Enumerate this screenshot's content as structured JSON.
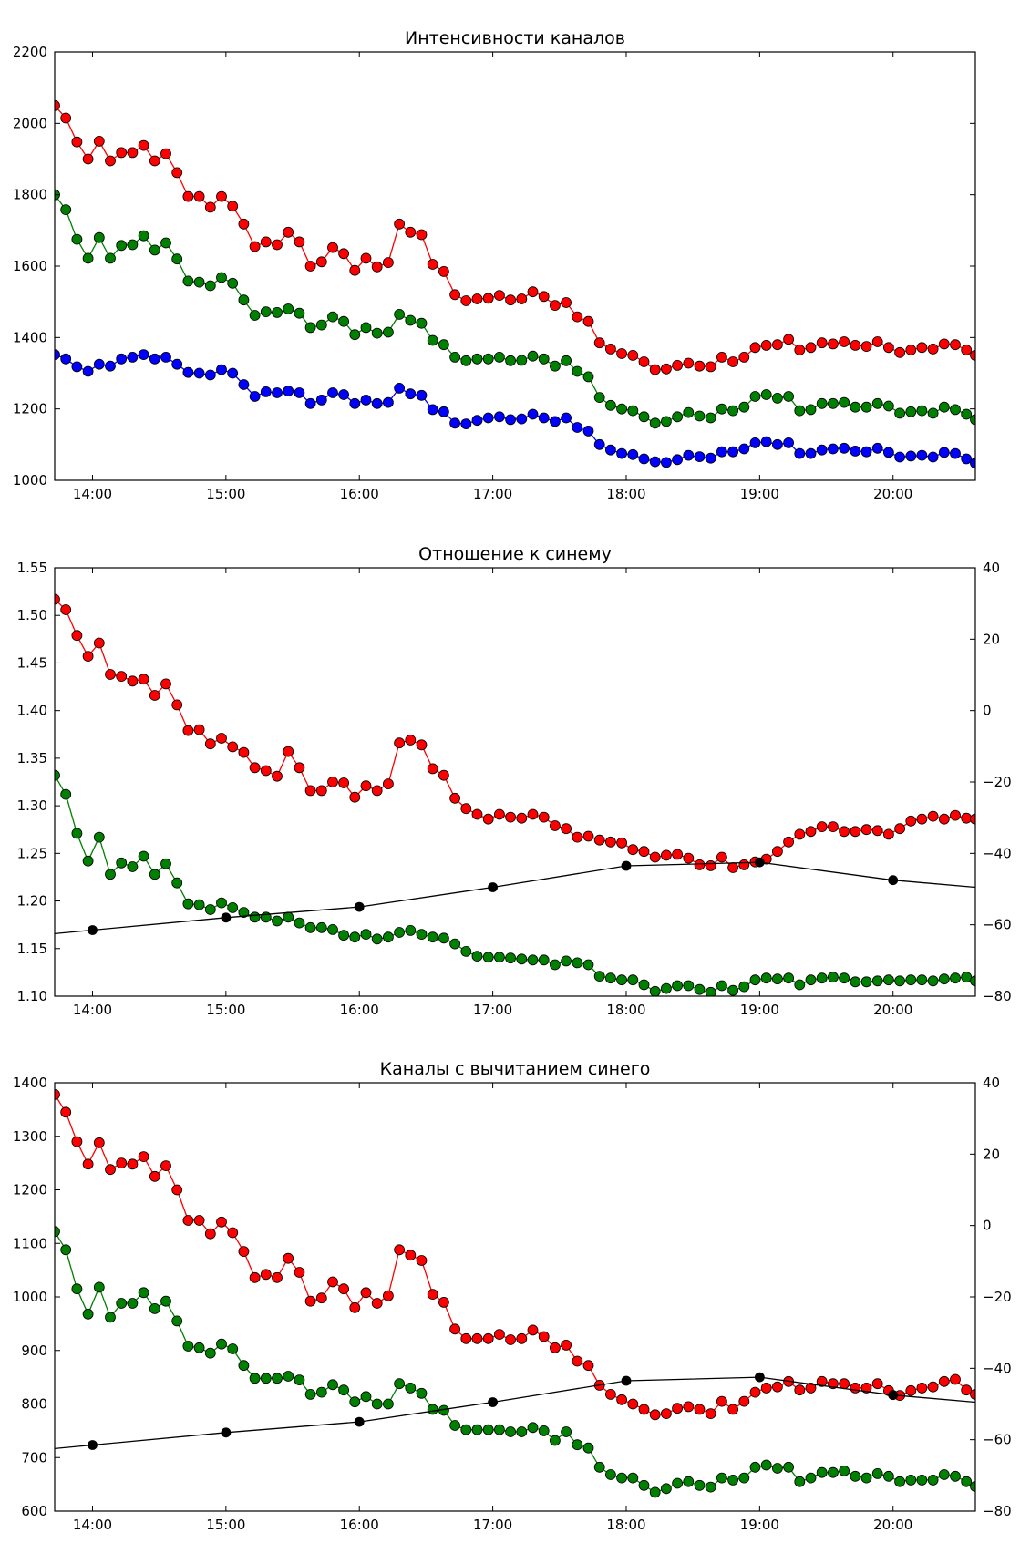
{
  "chart_data": [
    {
      "type": "line",
      "title": "Интенсивности каналов",
      "xlim": [
        "13:43",
        "20:37"
      ],
      "xticks": [
        "14:00",
        "15:00",
        "16:00",
        "17:00",
        "18:00",
        "19:00",
        "20:00"
      ],
      "ylim": [
        1000,
        2200
      ],
      "yticks": [
        "1000",
        "1200",
        "1400",
        "1600",
        "1800",
        "2000",
        "2200"
      ],
      "grid": false,
      "x": [
        "13:43",
        "13:48",
        "13:53",
        "13:58",
        "14:03",
        "14:08",
        "14:13",
        "14:18",
        "14:23",
        "14:28",
        "14:33",
        "14:38",
        "14:43",
        "14:48",
        "14:53",
        "14:58",
        "15:03",
        "15:08",
        "15:13",
        "15:18",
        "15:23",
        "15:28",
        "15:33",
        "15:38",
        "15:43",
        "15:48",
        "15:53",
        "15:58",
        "16:03",
        "16:08",
        "16:13",
        "16:18",
        "16:23",
        "16:28",
        "16:33",
        "16:38",
        "16:43",
        "16:48",
        "16:53",
        "16:58",
        "17:03",
        "17:08",
        "17:13",
        "17:18",
        "17:23",
        "17:28",
        "17:33",
        "17:38",
        "17:43",
        "17:48",
        "17:53",
        "17:58",
        "18:03",
        "18:08",
        "18:13",
        "18:18",
        "18:23",
        "18:28",
        "18:33",
        "18:38",
        "18:43",
        "18:48",
        "18:53",
        "18:58",
        "19:03",
        "19:08",
        "19:13",
        "19:18",
        "19:23",
        "19:28",
        "19:33",
        "19:38",
        "19:43",
        "19:48",
        "19:53",
        "19:58",
        "20:03",
        "20:08",
        "20:13",
        "20:18",
        "20:23",
        "20:28",
        "20:33",
        "20:37"
      ],
      "series": [
        {
          "color": "#ff0000",
          "values": [
            2050,
            2015,
            1948,
            1900,
            1950,
            1895,
            1918,
            1918,
            1938,
            1895,
            1915,
            1862,
            1795,
            1795,
            1765,
            1795,
            1768,
            1718,
            1655,
            1668,
            1660,
            1695,
            1668,
            1600,
            1612,
            1652,
            1635,
            1588,
            1622,
            1598,
            1610,
            1718,
            1695,
            1688,
            1605,
            1585,
            1520,
            1503,
            1508,
            1510,
            1518,
            1505,
            1508,
            1528,
            1515,
            1490,
            1498,
            1458,
            1445,
            1385,
            1368,
            1355,
            1350,
            1332,
            1310,
            1312,
            1322,
            1328,
            1320,
            1318,
            1345,
            1332,
            1345,
            1372,
            1378,
            1380,
            1395,
            1365,
            1372,
            1385,
            1382,
            1388,
            1378,
            1375,
            1388,
            1372,
            1358,
            1365,
            1372,
            1368,
            1382,
            1380,
            1365,
            1350
          ]
        },
        {
          "color": "#008000",
          "values": [
            1800,
            1758,
            1675,
            1622,
            1680,
            1622,
            1658,
            1660,
            1685,
            1645,
            1665,
            1620,
            1558,
            1555,
            1545,
            1568,
            1552,
            1505,
            1462,
            1472,
            1470,
            1480,
            1468,
            1428,
            1435,
            1458,
            1445,
            1408,
            1428,
            1412,
            1415,
            1465,
            1448,
            1440,
            1392,
            1380,
            1345,
            1335,
            1340,
            1340,
            1345,
            1335,
            1336,
            1348,
            1340,
            1320,
            1335,
            1305,
            1290,
            1232,
            1210,
            1200,
            1195,
            1178,
            1160,
            1165,
            1178,
            1190,
            1180,
            1175,
            1200,
            1195,
            1205,
            1235,
            1240,
            1230,
            1235,
            1195,
            1198,
            1215,
            1215,
            1218,
            1205,
            1205,
            1215,
            1208,
            1188,
            1192,
            1195,
            1188,
            1205,
            1198,
            1185,
            1170
          ]
        },
        {
          "color": "#0000ff",
          "values": [
            1352,
            1340,
            1318,
            1305,
            1325,
            1320,
            1340,
            1345,
            1352,
            1340,
            1345,
            1325,
            1302,
            1300,
            1295,
            1310,
            1300,
            1268,
            1235,
            1248,
            1245,
            1250,
            1245,
            1215,
            1225,
            1245,
            1240,
            1215,
            1225,
            1215,
            1218,
            1258,
            1242,
            1238,
            1198,
            1192,
            1160,
            1158,
            1168,
            1175,
            1178,
            1170,
            1172,
            1185,
            1175,
            1165,
            1175,
            1148,
            1138,
            1100,
            1085,
            1075,
            1072,
            1060,
            1052,
            1050,
            1058,
            1070,
            1066,
            1062,
            1080,
            1080,
            1088,
            1105,
            1108,
            1100,
            1105,
            1075,
            1075,
            1085,
            1088,
            1090,
            1082,
            1080,
            1090,
            1078,
            1065,
            1068,
            1070,
            1065,
            1078,
            1075,
            1060,
            1048
          ]
        }
      ]
    },
    {
      "type": "line",
      "title": "Отношение к синему",
      "xlim": [
        "13:43",
        "20:37"
      ],
      "xticks": [
        "14:00",
        "15:00",
        "16:00",
        "17:00",
        "18:00",
        "19:00",
        "20:00"
      ],
      "ylim": [
        1.1,
        1.55
      ],
      "yticks": [
        "1.10",
        "1.15",
        "1.20",
        "1.25",
        "1.30",
        "1.35",
        "1.40",
        "1.45",
        "1.50",
        "1.55"
      ],
      "y2lim": [
        -80,
        40
      ],
      "y2ticks": [
        "−80",
        "−60",
        "−40",
        "−20",
        "0",
        "20",
        "40"
      ],
      "grid": false,
      "x": [
        "13:43",
        "13:48",
        "13:53",
        "13:58",
        "14:03",
        "14:08",
        "14:13",
        "14:18",
        "14:23",
        "14:28",
        "14:33",
        "14:38",
        "14:43",
        "14:48",
        "14:53",
        "14:58",
        "15:03",
        "15:08",
        "15:13",
        "15:18",
        "15:23",
        "15:28",
        "15:33",
        "15:38",
        "15:43",
        "15:48",
        "15:53",
        "15:58",
        "16:03",
        "16:08",
        "16:13",
        "16:18",
        "16:23",
        "16:28",
        "16:33",
        "16:38",
        "16:43",
        "16:48",
        "16:53",
        "16:58",
        "17:03",
        "17:08",
        "17:13",
        "17:18",
        "17:23",
        "17:28",
        "17:33",
        "17:38",
        "17:43",
        "17:48",
        "17:53",
        "17:58",
        "18:03",
        "18:08",
        "18:13",
        "18:18",
        "18:23",
        "18:28",
        "18:33",
        "18:38",
        "18:43",
        "18:48",
        "18:53",
        "18:58",
        "19:03",
        "19:08",
        "19:13",
        "19:18",
        "19:23",
        "19:28",
        "19:33",
        "19:38",
        "19:43",
        "19:48",
        "19:53",
        "19:58",
        "20:03",
        "20:08",
        "20:13",
        "20:18",
        "20:23",
        "20:28",
        "20:33",
        "20:37"
      ],
      "series": [
        {
          "color": "#ff0000",
          "axis": "left",
          "values": [
            1.517,
            1.506,
            1.479,
            1.457,
            1.471,
            1.438,
            1.436,
            1.431,
            1.433,
            1.416,
            1.428,
            1.406,
            1.379,
            1.38,
            1.365,
            1.371,
            1.362,
            1.356,
            1.34,
            1.337,
            1.331,
            1.357,
            1.34,
            1.316,
            1.316,
            1.325,
            1.324,
            1.309,
            1.321,
            1.316,
            1.323,
            1.366,
            1.369,
            1.364,
            1.339,
            1.332,
            1.308,
            1.297,
            1.291,
            1.286,
            1.291,
            1.288,
            1.287,
            1.291,
            1.288,
            1.279,
            1.276,
            1.267,
            1.268,
            1.264,
            1.262,
            1.261,
            1.254,
            1.252,
            1.246,
            1.248,
            1.249,
            1.245,
            1.238,
            1.237,
            1.246,
            1.235,
            1.238,
            1.241,
            1.244,
            1.252,
            1.262,
            1.27,
            1.273,
            1.278,
            1.278,
            1.273,
            1.273,
            1.275,
            1.274,
            1.27,
            1.276,
            1.284,
            1.286,
            1.289,
            1.286,
            1.29,
            1.287,
            1.286
          ]
        },
        {
          "color": "#008000",
          "axis": "left",
          "values": [
            1.332,
            1.312,
            1.271,
            1.242,
            1.267,
            1.228,
            1.24,
            1.236,
            1.247,
            1.228,
            1.239,
            1.219,
            1.197,
            1.196,
            1.191,
            1.198,
            1.193,
            1.188,
            1.183,
            1.183,
            1.179,
            1.183,
            1.177,
            1.172,
            1.172,
            1.17,
            1.164,
            1.162,
            1.165,
            1.16,
            1.162,
            1.167,
            1.169,
            1.165,
            1.162,
            1.161,
            1.155,
            1.147,
            1.142,
            1.141,
            1.141,
            1.14,
            1.139,
            1.138,
            1.138,
            1.133,
            1.137,
            1.135,
            1.133,
            1.121,
            1.119,
            1.117,
            1.117,
            1.112,
            1.105,
            1.108,
            1.111,
            1.111,
            1.107,
            1.104,
            1.111,
            1.106,
            1.11,
            1.117,
            1.119,
            1.118,
            1.119,
            1.112,
            1.117,
            1.119,
            1.12,
            1.119,
            1.115,
            1.115,
            1.116,
            1.117,
            1.116,
            1.117,
            1.117,
            1.116,
            1.118,
            1.119,
            1.12,
            1.116
          ]
        },
        {
          "color": "#000000",
          "axis": "right",
          "x": [
            "14:00",
            "15:00",
            "16:00",
            "17:00",
            "18:00",
            "19:00",
            "20:00"
          ],
          "values": [
            -61.5,
            -58,
            -55,
            -49.5,
            -43.5,
            -42.5,
            -47.5
          ],
          "right_end": -49.5
        }
      ]
    },
    {
      "type": "line",
      "title": "Каналы с вычитанием синего",
      "xlim": [
        "13:43",
        "20:37"
      ],
      "xticks": [
        "14:00",
        "15:00",
        "16:00",
        "17:00",
        "18:00",
        "19:00",
        "20:00"
      ],
      "ylim": [
        600,
        1400
      ],
      "yticks": [
        "600",
        "700",
        "800",
        "900",
        "1000",
        "1100",
        "1200",
        "1300",
        "1400"
      ],
      "y2lim": [
        -80,
        40
      ],
      "y2ticks": [
        "−80",
        "−60",
        "−40",
        "−20",
        "0",
        "20",
        "40"
      ],
      "grid": false,
      "x": [
        "13:43",
        "13:48",
        "13:53",
        "13:58",
        "14:03",
        "14:08",
        "14:13",
        "14:18",
        "14:23",
        "14:28",
        "14:33",
        "14:38",
        "14:43",
        "14:48",
        "14:53",
        "14:58",
        "15:03",
        "15:08",
        "15:13",
        "15:18",
        "15:23",
        "15:28",
        "15:33",
        "15:38",
        "15:43",
        "15:48",
        "15:53",
        "15:58",
        "16:03",
        "16:08",
        "16:13",
        "16:18",
        "16:23",
        "16:28",
        "16:33",
        "16:38",
        "16:43",
        "16:48",
        "16:53",
        "16:58",
        "17:03",
        "17:08",
        "17:13",
        "17:18",
        "17:23",
        "17:28",
        "17:33",
        "17:38",
        "17:43",
        "17:48",
        "17:53",
        "17:58",
        "18:03",
        "18:08",
        "18:13",
        "18:18",
        "18:23",
        "18:28",
        "18:33",
        "18:38",
        "18:43",
        "18:48",
        "18:53",
        "18:58",
        "19:03",
        "19:08",
        "19:13",
        "19:18",
        "19:23",
        "19:28",
        "19:33",
        "19:38",
        "19:43",
        "19:48",
        "19:53",
        "19:58",
        "20:03",
        "20:08",
        "20:13",
        "20:18",
        "20:23",
        "20:28",
        "20:33",
        "20:37"
      ],
      "series": [
        {
          "color": "#ff0000",
          "axis": "left",
          "values": [
            1378,
            1345,
            1290,
            1248,
            1288,
            1238,
            1250,
            1248,
            1262,
            1225,
            1245,
            1200,
            1143,
            1143,
            1118,
            1140,
            1120,
            1085,
            1036,
            1042,
            1036,
            1072,
            1046,
            992,
            998,
            1028,
            1015,
            980,
            1008,
            988,
            1002,
            1088,
            1078,
            1068,
            1005,
            990,
            940,
            922,
            922,
            922,
            930,
            920,
            922,
            938,
            926,
            905,
            910,
            880,
            872,
            835,
            818,
            808,
            800,
            790,
            780,
            782,
            792,
            795,
            790,
            782,
            805,
            790,
            805,
            822,
            830,
            832,
            842,
            826,
            830,
            842,
            838,
            838,
            830,
            830,
            838,
            825,
            816,
            825,
            830,
            832,
            842,
            846,
            826,
            818
          ]
        },
        {
          "color": "#008000",
          "axis": "left",
          "values": [
            1122,
            1088,
            1015,
            968,
            1018,
            962,
            988,
            988,
            1008,
            978,
            992,
            955,
            908,
            905,
            895,
            912,
            903,
            872,
            848,
            848,
            848,
            852,
            845,
            818,
            822,
            836,
            826,
            804,
            814,
            800,
            800,
            838,
            830,
            820,
            790,
            788,
            760,
            752,
            752,
            752,
            752,
            748,
            748,
            756,
            750,
            732,
            748,
            724,
            718,
            682,
            668,
            662,
            662,
            648,
            635,
            642,
            652,
            655,
            648,
            645,
            662,
            658,
            662,
            682,
            686,
            680,
            682,
            655,
            662,
            672,
            672,
            675,
            665,
            662,
            670,
            665,
            655,
            658,
            658,
            658,
            668,
            665,
            655,
            646
          ]
        },
        {
          "color": "#000000",
          "axis": "right",
          "x": [
            "14:00",
            "15:00",
            "16:00",
            "17:00",
            "18:00",
            "19:00",
            "20:00"
          ],
          "values": [
            -61.5,
            -58,
            -55,
            -49.5,
            -43.5,
            -42.5,
            -47.5
          ],
          "right_end": -49.5
        }
      ]
    }
  ]
}
